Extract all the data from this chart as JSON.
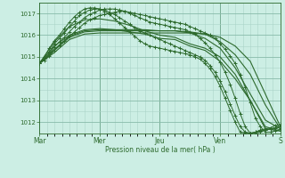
{
  "background_color": "#cceee4",
  "grid_color_minor": "#aad4c8",
  "grid_color_major": "#88bbaa",
  "line_color": "#2d6a2d",
  "xlabel": "Pression niveau de la mer( hPa )",
  "ylim": [
    1011.5,
    1017.5
  ],
  "yticks": [
    1012,
    1013,
    1014,
    1015,
    1016,
    1017
  ],
  "day_labels": [
    "Mar",
    "Mer",
    "Jeu",
    "Ven",
    "S"
  ],
  "day_positions": [
    0,
    24,
    48,
    72,
    96
  ],
  "total_hours": 96,
  "series": [
    {
      "x": [
        0,
        6,
        12,
        18,
        24,
        30,
        36,
        42,
        48,
        54,
        60,
        66,
        72,
        78,
        84,
        90,
        96
      ],
      "y": [
        1014.7,
        1015.2,
        1015.8,
        1016.05,
        1016.1,
        1016.1,
        1016.1,
        1016.1,
        1016.1,
        1016.1,
        1016.1,
        1016.05,
        1015.9,
        1015.5,
        1014.8,
        1013.3,
        1011.8
      ],
      "marker": null,
      "linewidth": 0.8,
      "linestyle": "-"
    },
    {
      "x": [
        0,
        6,
        12,
        18,
        24,
        30,
        36,
        42,
        48,
        54,
        60,
        66,
        72,
        78,
        84,
        90,
        96
      ],
      "y": [
        1014.7,
        1015.3,
        1015.9,
        1016.15,
        1016.2,
        1016.2,
        1016.2,
        1016.2,
        1016.2,
        1016.2,
        1016.15,
        1016.05,
        1015.7,
        1015.1,
        1014.2,
        1012.8,
        1011.7
      ],
      "marker": null,
      "linewidth": 0.8,
      "linestyle": "-"
    },
    {
      "x": [
        0,
        6,
        12,
        18,
        24,
        30,
        36,
        42,
        48,
        54,
        60,
        66,
        72,
        78,
        84,
        90,
        96
      ],
      "y": [
        1014.7,
        1015.35,
        1015.95,
        1016.2,
        1016.25,
        1016.25,
        1016.25,
        1016.25,
        1016.2,
        1016.2,
        1016.1,
        1015.85,
        1015.4,
        1014.5,
        1013.3,
        1012.1,
        1011.7
      ],
      "marker": null,
      "linewidth": 0.8,
      "linestyle": "-"
    },
    {
      "x": [
        0,
        6,
        12,
        18,
        24,
        30,
        36,
        42,
        48,
        54,
        60,
        66,
        72,
        78,
        84,
        90,
        96
      ],
      "y": [
        1014.7,
        1015.5,
        1016.0,
        1016.25,
        1016.3,
        1016.25,
        1016.15,
        1016.05,
        1015.85,
        1015.8,
        1015.5,
        1015.3,
        1014.8,
        1014.0,
        1013.0,
        1011.8,
        1011.6
      ],
      "marker": null,
      "linewidth": 0.8,
      "linestyle": "-"
    },
    {
      "x": [
        0,
        6,
        12,
        18,
        24,
        30,
        36,
        42,
        48,
        54,
        60,
        66,
        72,
        78,
        84,
        90,
        96
      ],
      "y": [
        1014.7,
        1015.7,
        1016.4,
        1016.7,
        1016.75,
        1016.65,
        1016.45,
        1016.2,
        1016.0,
        1015.9,
        1015.6,
        1015.4,
        1015.0,
        1014.2,
        1013.0,
        1011.7,
        1011.6
      ],
      "marker": null,
      "linewidth": 0.8,
      "linestyle": "-"
    },
    {
      "x": [
        0,
        2,
        4,
        6,
        8,
        10,
        12,
        14,
        16,
        18,
        20,
        22,
        24,
        26,
        28,
        30,
        32,
        34,
        36,
        38,
        40,
        42,
        44,
        46,
        48,
        50,
        52,
        54,
        56,
        58,
        60,
        62,
        64,
        66,
        68,
        70,
        72,
        74,
        76,
        78,
        80,
        82,
        84,
        86,
        88,
        90,
        92,
        94,
        96
      ],
      "y": [
        1014.7,
        1014.85,
        1015.05,
        1015.3,
        1015.55,
        1015.75,
        1015.95,
        1016.15,
        1016.35,
        1016.55,
        1016.7,
        1016.8,
        1016.9,
        1016.95,
        1017.0,
        1017.05,
        1017.1,
        1017.1,
        1017.05,
        1017.0,
        1016.95,
        1016.9,
        1016.85,
        1016.8,
        1016.75,
        1016.7,
        1016.65,
        1016.6,
        1016.55,
        1016.5,
        1016.4,
        1016.3,
        1016.2,
        1016.1,
        1016.0,
        1015.85,
        1015.6,
        1015.35,
        1015.05,
        1014.7,
        1014.2,
        1013.6,
        1012.9,
        1012.2,
        1011.8,
        1011.55,
        1011.55,
        1011.6,
        1011.7
      ],
      "marker": "+",
      "markersize": 2.5,
      "linewidth": 0.7,
      "linestyle": "-"
    },
    {
      "x": [
        0,
        2,
        4,
        6,
        8,
        10,
        12,
        14,
        16,
        18,
        20,
        22,
        24,
        26,
        28,
        30,
        32,
        34,
        36,
        38,
        40,
        42,
        44,
        46,
        48,
        50,
        52,
        54,
        56,
        58,
        60,
        62,
        64,
        66,
        68,
        70,
        72,
        74,
        76,
        78,
        80,
        82,
        84,
        86,
        88,
        90,
        92,
        94,
        96
      ],
      "y": [
        1014.7,
        1014.9,
        1015.15,
        1015.45,
        1015.7,
        1015.9,
        1016.15,
        1016.4,
        1016.6,
        1016.8,
        1016.95,
        1017.05,
        1017.15,
        1017.2,
        1017.2,
        1017.2,
        1017.15,
        1017.1,
        1017.0,
        1016.9,
        1016.8,
        1016.7,
        1016.6,
        1016.55,
        1016.5,
        1016.45,
        1016.4,
        1016.35,
        1016.3,
        1016.25,
        1016.15,
        1016.05,
        1015.85,
        1015.65,
        1015.4,
        1015.1,
        1014.75,
        1014.3,
        1013.75,
        1013.1,
        1012.4,
        1011.8,
        1011.5,
        1011.5,
        1011.55,
        1011.65,
        1011.7,
        1011.75,
        1011.8
      ],
      "marker": "+",
      "markersize": 2.5,
      "linewidth": 0.7,
      "linestyle": "-"
    },
    {
      "x": [
        0,
        2,
        4,
        6,
        8,
        10,
        12,
        14,
        16,
        18,
        20,
        22,
        24,
        26,
        28,
        30,
        32,
        34,
        36,
        38,
        40,
        42,
        44,
        46,
        48,
        50,
        52,
        54,
        56,
        58,
        60,
        62,
        64,
        66,
        68,
        70,
        72,
        74,
        76,
        78,
        80,
        82,
        84,
        86,
        88,
        90,
        92,
        94,
        96
      ],
      "y": [
        1014.7,
        1014.95,
        1015.25,
        1015.6,
        1015.85,
        1016.1,
        1016.4,
        1016.65,
        1016.9,
        1017.05,
        1017.15,
        1017.2,
        1017.2,
        1017.15,
        1017.05,
        1016.95,
        1016.8,
        1016.65,
        1016.5,
        1016.35,
        1016.2,
        1016.1,
        1016.0,
        1015.9,
        1015.8,
        1015.7,
        1015.6,
        1015.5,
        1015.4,
        1015.3,
        1015.2,
        1015.1,
        1015.0,
        1014.85,
        1014.6,
        1014.3,
        1013.9,
        1013.4,
        1012.85,
        1012.3,
        1011.8,
        1011.55,
        1011.5,
        1011.55,
        1011.6,
        1011.65,
        1011.7,
        1011.75,
        1011.8
      ],
      "marker": "+",
      "markersize": 2.5,
      "linewidth": 0.7,
      "linestyle": "-"
    },
    {
      "x": [
        0,
        2,
        4,
        6,
        8,
        10,
        12,
        14,
        16,
        18,
        20,
        22,
        24,
        26,
        28,
        30,
        32,
        34,
        36,
        38,
        40,
        42,
        44,
        46,
        48,
        50,
        52,
        54,
        56,
        58,
        60,
        62,
        64,
        66,
        68,
        70,
        72,
        74,
        76,
        78,
        80,
        82,
        84,
        86,
        88,
        90,
        92,
        94,
        96
      ],
      "y": [
        1014.7,
        1015.0,
        1015.4,
        1015.75,
        1016.0,
        1016.3,
        1016.6,
        1016.85,
        1017.05,
        1017.2,
        1017.25,
        1017.25,
        1017.2,
        1017.1,
        1016.95,
        1016.75,
        1016.55,
        1016.35,
        1016.15,
        1015.95,
        1015.75,
        1015.6,
        1015.5,
        1015.45,
        1015.4,
        1015.35,
        1015.3,
        1015.25,
        1015.2,
        1015.15,
        1015.1,
        1015.0,
        1014.9,
        1014.7,
        1014.45,
        1014.1,
        1013.65,
        1013.1,
        1012.55,
        1012.0,
        1011.55,
        1011.5,
        1011.5,
        1011.55,
        1011.65,
        1011.7,
        1011.75,
        1011.85,
        1011.9
      ],
      "marker": "+",
      "markersize": 2.5,
      "linewidth": 0.7,
      "linestyle": "-"
    }
  ]
}
